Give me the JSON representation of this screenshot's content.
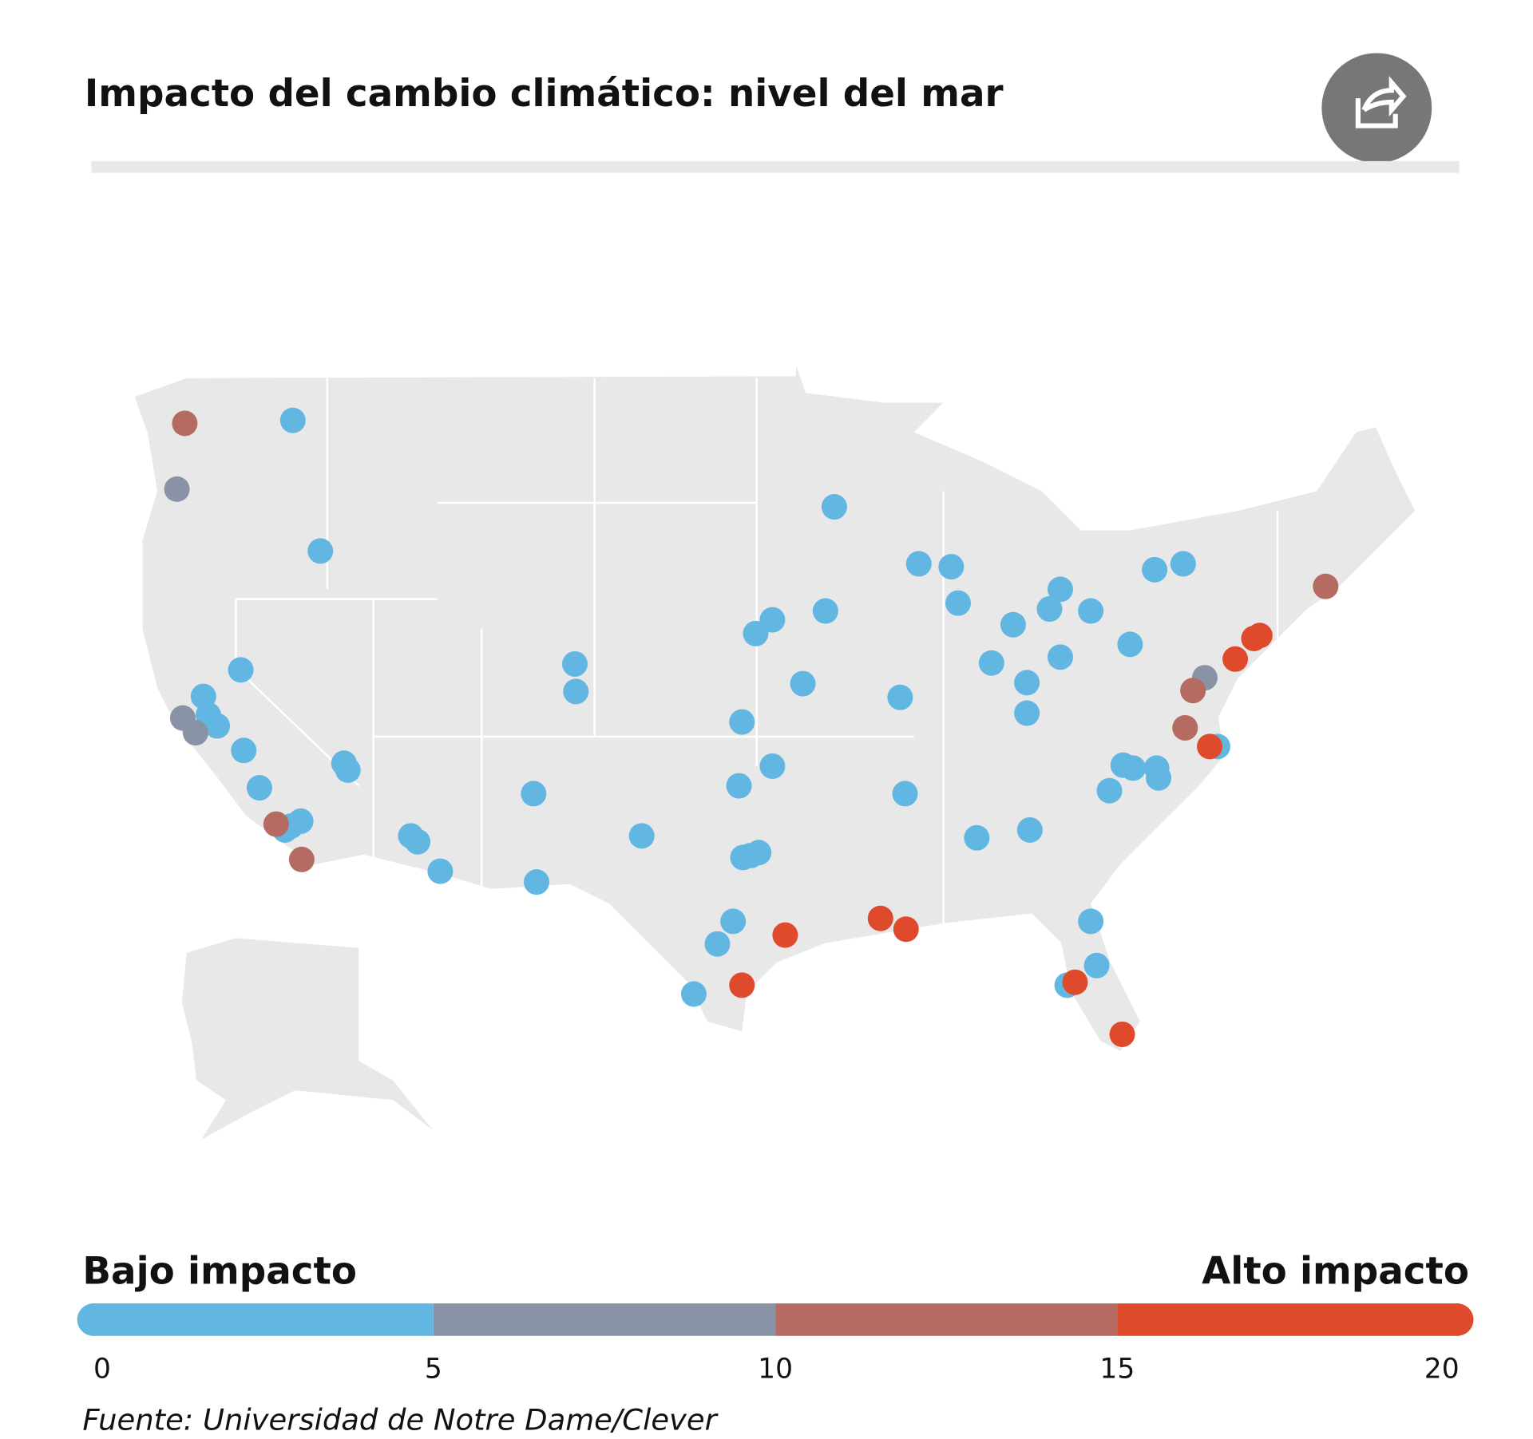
{
  "chart_data": {
    "type": "dot-map",
    "title": "Impacto del cambio climático: nivel del mar",
    "values": [
      2.5,
      2.5,
      2.5,
      2.5,
      2.5,
      2.5,
      2.5,
      2.5,
      2.5,
      2.5,
      2.5,
      2.5,
      2.5,
      2.5,
      2.5,
      2.5,
      2.5,
      2.5,
      2.5,
      2.5,
      2.5,
      2.5,
      2.5,
      2.5,
      2.5,
      2.5,
      2.5,
      2.5,
      2.5,
      2.5,
      2.5,
      2.5,
      2.5,
      2.5,
      2.5,
      2.5,
      2.5,
      2.5,
      2.5,
      2.5,
      2.5,
      2.5,
      2.5,
      2.5,
      2.5,
      2.5,
      2.5,
      2.5,
      2.5,
      2.5,
      2.5,
      2.5,
      2.5,
      2.5,
      2.5,
      2.5,
      2.5,
      2.5,
      2.5,
      2.5,
      2.5,
      2.5,
      7.5,
      7.5,
      7.5,
      7.5,
      12.5,
      12.5,
      12.5,
      12.5,
      12.5,
      12.5,
      17.5,
      17.5,
      17.5,
      17.5,
      17.5,
      17.5,
      17.5,
      17.5,
      17.5,
      17.5
    ],
    "colorbar": {
      "low_label": "Bajo impacto",
      "high_label": "Alto impacto",
      "lim": [
        0,
        20
      ],
      "ticks": [
        0,
        5,
        10,
        15,
        20
      ],
      "colors": [
        "#62b6e2",
        "#8a93a6",
        "#b56b62",
        "#e04a2c"
      ]
    },
    "source": "Fuente: Universidad de Notre Dame/Clever"
  }
}
